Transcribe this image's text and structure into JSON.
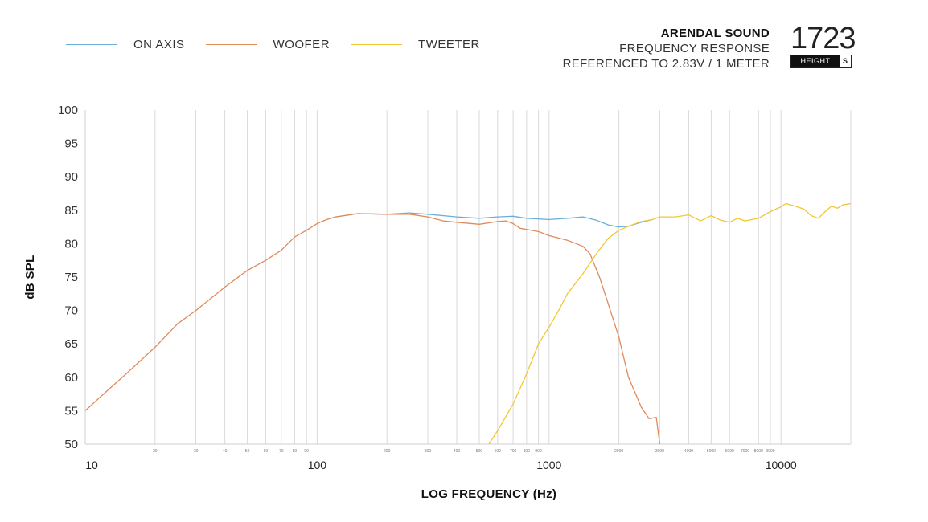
{
  "legend": [
    {
      "name": "ON AXIS",
      "color": "#6aaed6"
    },
    {
      "name": "WOOFER",
      "color": "#e08a5a"
    },
    {
      "name": "TWEETER",
      "color": "#f2c733"
    }
  ],
  "brand": {
    "name": "ARENDAL SOUND",
    "line1": "FREQUENCY RESPONSE",
    "line2": "REFERENCED TO 2.83V / 1 METER"
  },
  "model": {
    "number": "1723",
    "tag": "HEIGHT",
    "size": "S"
  },
  "chart_data": {
    "type": "line",
    "xlabel": "LOG FREQUENCY (Hz)",
    "ylabel": "dB SPL",
    "xscale": "log",
    "xlim": [
      10,
      20000
    ],
    "ylim": [
      50,
      100
    ],
    "yticks": [
      50,
      55,
      60,
      65,
      70,
      75,
      80,
      85,
      90,
      95,
      100
    ],
    "xticks_major": [
      10,
      100,
      1000,
      10000
    ],
    "xticks_minor": [
      20,
      30,
      40,
      50,
      60,
      70,
      80,
      90,
      200,
      300,
      400,
      500,
      600,
      700,
      800,
      900,
      2000,
      3000,
      4000,
      5000,
      6000,
      7000,
      8000,
      9000
    ],
    "grid": "vertical",
    "legend_position": "top-left",
    "series": [
      {
        "name": "ON AXIS",
        "color": "#6aaed6",
        "points": [
          [
            120,
            84.0
          ],
          [
            150,
            84.5
          ],
          [
            200,
            84.4
          ],
          [
            250,
            84.6
          ],
          [
            300,
            84.4
          ],
          [
            400,
            84.0
          ],
          [
            500,
            83.8
          ],
          [
            600,
            84.0
          ],
          [
            700,
            84.1
          ],
          [
            800,
            83.8
          ],
          [
            1000,
            83.6
          ],
          [
            1200,
            83.8
          ],
          [
            1400,
            84.0
          ],
          [
            1600,
            83.5
          ],
          [
            1800,
            82.8
          ],
          [
            2000,
            82.5
          ],
          [
            2200,
            82.6
          ],
          [
            2500,
            83.2
          ],
          [
            2800,
            83.6
          ]
        ]
      },
      {
        "name": "WOOFER",
        "color": "#e08a5a",
        "points": [
          [
            10,
            55.0
          ],
          [
            12,
            57.5
          ],
          [
            15,
            60.5
          ],
          [
            20,
            64.5
          ],
          [
            25,
            68.0
          ],
          [
            30,
            70.0
          ],
          [
            40,
            73.5
          ],
          [
            50,
            76.0
          ],
          [
            60,
            77.5
          ],
          [
            70,
            79.0
          ],
          [
            80,
            81.0
          ],
          [
            90,
            82.0
          ],
          [
            100,
            83.0
          ],
          [
            110,
            83.6
          ],
          [
            120,
            84.0
          ],
          [
            150,
            84.5
          ],
          [
            200,
            84.4
          ],
          [
            250,
            84.4
          ],
          [
            300,
            84.0
          ],
          [
            350,
            83.4
          ],
          [
            400,
            83.2
          ],
          [
            500,
            82.9
          ],
          [
            600,
            83.3
          ],
          [
            650,
            83.4
          ],
          [
            700,
            83.0
          ],
          [
            750,
            82.3
          ],
          [
            900,
            81.8
          ],
          [
            1000,
            81.2
          ],
          [
            1200,
            80.5
          ],
          [
            1400,
            79.6
          ],
          [
            1500,
            78.5
          ],
          [
            1650,
            75.0
          ],
          [
            1800,
            71.0
          ],
          [
            2000,
            66.0
          ],
          [
            2200,
            60.0
          ],
          [
            2500,
            55.5
          ],
          [
            2700,
            53.8
          ],
          [
            2900,
            54.0
          ],
          [
            3000,
            50.0
          ]
        ]
      },
      {
        "name": "TWEETER",
        "color": "#f2c733",
        "points": [
          [
            550,
            50.0
          ],
          [
            600,
            52.0
          ],
          [
            700,
            56.0
          ],
          [
            800,
            60.5
          ],
          [
            900,
            65.0
          ],
          [
            1000,
            67.5
          ],
          [
            1100,
            70.0
          ],
          [
            1200,
            72.5
          ],
          [
            1400,
            75.5
          ],
          [
            1600,
            78.5
          ],
          [
            1800,
            80.8
          ],
          [
            2000,
            82.0
          ],
          [
            2200,
            82.6
          ],
          [
            2500,
            83.3
          ],
          [
            2800,
            83.6
          ],
          [
            3000,
            84.0
          ],
          [
            3500,
            84.0
          ],
          [
            4000,
            84.3
          ],
          [
            4500,
            83.4
          ],
          [
            5000,
            84.2
          ],
          [
            5500,
            83.5
          ],
          [
            6000,
            83.2
          ],
          [
            6500,
            83.8
          ],
          [
            7000,
            83.4
          ],
          [
            7500,
            83.6
          ],
          [
            8000,
            83.8
          ],
          [
            9000,
            84.8
          ],
          [
            10000,
            85.5
          ],
          [
            10500,
            86.0
          ],
          [
            11500,
            85.6
          ],
          [
            12500,
            85.2
          ],
          [
            13500,
            84.2
          ],
          [
            14500,
            83.8
          ],
          [
            15500,
            84.8
          ],
          [
            16500,
            85.6
          ],
          [
            17500,
            85.3
          ],
          [
            18500,
            85.8
          ],
          [
            20000,
            86.0
          ]
        ]
      }
    ]
  }
}
